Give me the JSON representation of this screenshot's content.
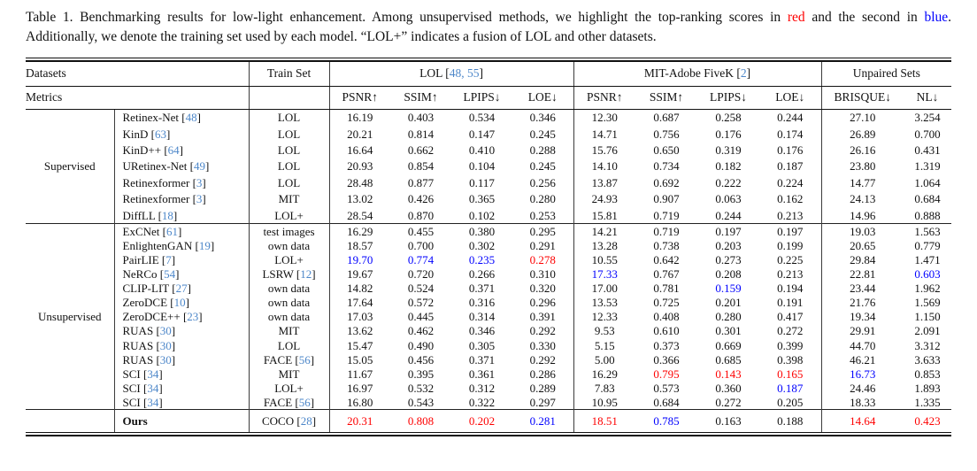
{
  "colors": {
    "red": "#fe0000",
    "blue": "#0000fe",
    "cite": "#4d87c9",
    "rule": "#111111"
  },
  "brackets": {
    "open": "[",
    "close": "]"
  },
  "caption": {
    "prefix": "Table 1. Benchmarking results for low-light enhancement. Among unsupervised methods, we highlight the top-ranking scores in ",
    "red_word": "red",
    "middle": " and the second in ",
    "blue_word": "blue",
    "suffix": ". Additionally, we denote the training set used by each model. “LOL+” indicates a fusion of LOL and other datasets."
  },
  "header": {
    "datasets_label": "Datasets",
    "train_set_label": "Train Set",
    "metrics_label": "Metrics",
    "datasets": [
      {
        "name": "LOL",
        "cites": "48, 55"
      },
      {
        "name": "MIT-Adobe FiveK",
        "cites": "2"
      },
      {
        "name": "Unpaired Sets",
        "cites": ""
      }
    ],
    "metrics": [
      "PSNR↑",
      "SSIM↑",
      "LPIPS↓",
      "LOE↓",
      "PSNR↑",
      "SSIM↑",
      "LPIPS↓",
      "LOE↓",
      "BRISQUE↓",
      "NL↓"
    ]
  },
  "sections": [
    {
      "group": "Supervised",
      "rows": [
        {
          "method": "Retinex-Net",
          "cite": "48",
          "train": "LOL",
          "train_cite": "",
          "values": [
            "16.19",
            "0.403",
            "0.534",
            "0.346",
            "12.30",
            "0.687",
            "0.258",
            "0.244",
            "27.10",
            "3.254"
          ],
          "highlights": [
            "",
            "",
            "",
            "",
            "",
            "",
            "",
            "",
            "",
            ""
          ]
        },
        {
          "method": "KinD",
          "cite": "63",
          "train": "LOL",
          "train_cite": "",
          "values": [
            "20.21",
            "0.814",
            "0.147",
            "0.245",
            "14.71",
            "0.756",
            "0.176",
            "0.174",
            "26.89",
            "0.700"
          ],
          "highlights": [
            "",
            "",
            "",
            "",
            "",
            "",
            "",
            "",
            "",
            ""
          ]
        },
        {
          "method": "KinD++",
          "cite": "64",
          "train": "LOL",
          "train_cite": "",
          "values": [
            "16.64",
            "0.662",
            "0.410",
            "0.288",
            "15.76",
            "0.650",
            "0.319",
            "0.176",
            "26.16",
            "0.431"
          ],
          "highlights": [
            "",
            "",
            "",
            "",
            "",
            "",
            "",
            "",
            "",
            ""
          ]
        },
        {
          "method": "URetinex-Net",
          "cite": "49",
          "train": "LOL",
          "train_cite": "",
          "values": [
            "20.93",
            "0.854",
            "0.104",
            "0.245",
            "14.10",
            "0.734",
            "0.182",
            "0.187",
            "23.80",
            "1.319"
          ],
          "highlights": [
            "",
            "",
            "",
            "",
            "",
            "",
            "",
            "",
            "",
            ""
          ]
        },
        {
          "method": "Retinexformer",
          "cite": "3",
          "train": "LOL",
          "train_cite": "",
          "values": [
            "28.48",
            "0.877",
            "0.117",
            "0.256",
            "13.87",
            "0.692",
            "0.222",
            "0.224",
            "14.77",
            "1.064"
          ],
          "highlights": [
            "",
            "",
            "",
            "",
            "",
            "",
            "",
            "",
            "",
            ""
          ]
        },
        {
          "method": "Retinexformer",
          "cite": "3",
          "train": "MIT",
          "train_cite": "",
          "values": [
            "13.02",
            "0.426",
            "0.365",
            "0.280",
            "24.93",
            "0.907",
            "0.063",
            "0.162",
            "24.13",
            "0.684"
          ],
          "highlights": [
            "",
            "",
            "",
            "",
            "",
            "",
            "",
            "",
            "",
            ""
          ]
        },
        {
          "method": "DiffLL",
          "cite": "18",
          "train": "LOL+",
          "train_cite": "",
          "values": [
            "28.54",
            "0.870",
            "0.102",
            "0.253",
            "15.81",
            "0.719",
            "0.244",
            "0.213",
            "14.96",
            "0.888"
          ],
          "highlights": [
            "",
            "",
            "",
            "",
            "",
            "",
            "",
            "",
            "",
            ""
          ]
        }
      ]
    },
    {
      "group": "Unsupervised",
      "rows": [
        {
          "method": "ExCNet",
          "cite": "61",
          "train": "test images",
          "train_cite": "",
          "values": [
            "16.29",
            "0.455",
            "0.380",
            "0.295",
            "14.21",
            "0.719",
            "0.197",
            "0.197",
            "19.03",
            "1.563"
          ],
          "highlights": [
            "",
            "",
            "",
            "",
            "",
            "",
            "",
            "",
            "",
            ""
          ]
        },
        {
          "method": "EnlightenGAN",
          "cite": "19",
          "train": "own data",
          "train_cite": "",
          "values": [
            "18.57",
            "0.700",
            "0.302",
            "0.291",
            "13.28",
            "0.738",
            "0.203",
            "0.199",
            "20.65",
            "0.779"
          ],
          "highlights": [
            "",
            "",
            "",
            "",
            "",
            "",
            "",
            "",
            "",
            ""
          ]
        },
        {
          "method": "PairLIE",
          "cite": "7",
          "train": "LOL+",
          "train_cite": "",
          "values": [
            "19.70",
            "0.774",
            "0.235",
            "0.278",
            "10.55",
            "0.642",
            "0.273",
            "0.225",
            "29.84",
            "1.471"
          ],
          "highlights": [
            "blue",
            "blue",
            "blue",
            "red",
            "",
            "",
            "",
            "",
            "",
            ""
          ]
        },
        {
          "method": "NeRCo",
          "cite": "54",
          "train": "LSRW",
          "train_cite": "12",
          "values": [
            "19.67",
            "0.720",
            "0.266",
            "0.310",
            "17.33",
            "0.767",
            "0.208",
            "0.213",
            "22.81",
            "0.603"
          ],
          "highlights": [
            "",
            "",
            "",
            "",
            "blue",
            "",
            "",
            "",
            "",
            "blue"
          ]
        },
        {
          "method": "CLIP-LIT",
          "cite": "27",
          "train": "own data",
          "train_cite": "",
          "values": [
            "14.82",
            "0.524",
            "0.371",
            "0.320",
            "17.00",
            "0.781",
            "0.159",
            "0.194",
            "23.44",
            "1.962"
          ],
          "highlights": [
            "",
            "",
            "",
            "",
            "",
            "",
            "blue",
            "",
            "",
            ""
          ]
        },
        {
          "method": "ZeroDCE",
          "cite": "10",
          "train": "own data",
          "train_cite": "",
          "values": [
            "17.64",
            "0.572",
            "0.316",
            "0.296",
            "13.53",
            "0.725",
            "0.201",
            "0.191",
            "21.76",
            "1.569"
          ],
          "highlights": [
            "",
            "",
            "",
            "",
            "",
            "",
            "",
            "",
            "",
            ""
          ]
        },
        {
          "method": "ZeroDCE++",
          "cite": "23",
          "train": "own data",
          "train_cite": "",
          "values": [
            "17.03",
            "0.445",
            "0.314",
            "0.391",
            "12.33",
            "0.408",
            "0.280",
            "0.417",
            "19.34",
            "1.150"
          ],
          "highlights": [
            "",
            "",
            "",
            "",
            "",
            "",
            "",
            "",
            "",
            ""
          ]
        },
        {
          "method": "RUAS",
          "cite": "30",
          "train": "MIT",
          "train_cite": "",
          "values": [
            "13.62",
            "0.462",
            "0.346",
            "0.292",
            "9.53",
            "0.610",
            "0.301",
            "0.272",
            "29.91",
            "2.091"
          ],
          "highlights": [
            "",
            "",
            "",
            "",
            "",
            "",
            "",
            "",
            "",
            ""
          ]
        },
        {
          "method": "RUAS",
          "cite": "30",
          "train": "LOL",
          "train_cite": "",
          "values": [
            "15.47",
            "0.490",
            "0.305",
            "0.330",
            "5.15",
            "0.373",
            "0.669",
            "0.399",
            "44.70",
            "3.312"
          ],
          "highlights": [
            "",
            "",
            "",
            "",
            "",
            "",
            "",
            "",
            "",
            ""
          ]
        },
        {
          "method": "RUAS",
          "cite": "30",
          "train": "FACE",
          "train_cite": "56",
          "values": [
            "15.05",
            "0.456",
            "0.371",
            "0.292",
            "5.00",
            "0.366",
            "0.685",
            "0.398",
            "46.21",
            "3.633"
          ],
          "highlights": [
            "",
            "",
            "",
            "",
            "",
            "",
            "",
            "",
            "",
            ""
          ]
        },
        {
          "method": "SCI",
          "cite": "34",
          "train": "MIT",
          "train_cite": "",
          "values": [
            "11.67",
            "0.395",
            "0.361",
            "0.286",
            "16.29",
            "0.795",
            "0.143",
            "0.165",
            "16.73",
            "0.853"
          ],
          "highlights": [
            "",
            "",
            "",
            "",
            "",
            "red",
            "red",
            "red",
            "blue",
            ""
          ]
        },
        {
          "method": "SCI",
          "cite": "34",
          "train": "LOL+",
          "train_cite": "",
          "values": [
            "16.97",
            "0.532",
            "0.312",
            "0.289",
            "7.83",
            "0.573",
            "0.360",
            "0.187",
            "24.46",
            "1.893"
          ],
          "highlights": [
            "",
            "",
            "",
            "",
            "",
            "",
            "",
            "blue",
            "",
            ""
          ]
        },
        {
          "method": "SCI",
          "cite": "34",
          "train": "FACE",
          "train_cite": "56",
          "values": [
            "16.80",
            "0.543",
            "0.322",
            "0.297",
            "10.95",
            "0.684",
            "0.272",
            "0.205",
            "18.33",
            "1.335"
          ],
          "highlights": [
            "",
            "",
            "",
            "",
            "",
            "",
            "",
            "",
            "",
            ""
          ]
        }
      ]
    }
  ],
  "ours": {
    "group": "",
    "method": "Ours",
    "cite": "",
    "train": "COCO",
    "train_cite": "28",
    "values": [
      "20.31",
      "0.808",
      "0.202",
      "0.281",
      "18.51",
      "0.785",
      "0.163",
      "0.188",
      "14.64",
      "0.423"
    ],
    "highlights": [
      "red",
      "red",
      "red",
      "blue",
      "red",
      "blue",
      "",
      "",
      "red",
      "red"
    ]
  }
}
